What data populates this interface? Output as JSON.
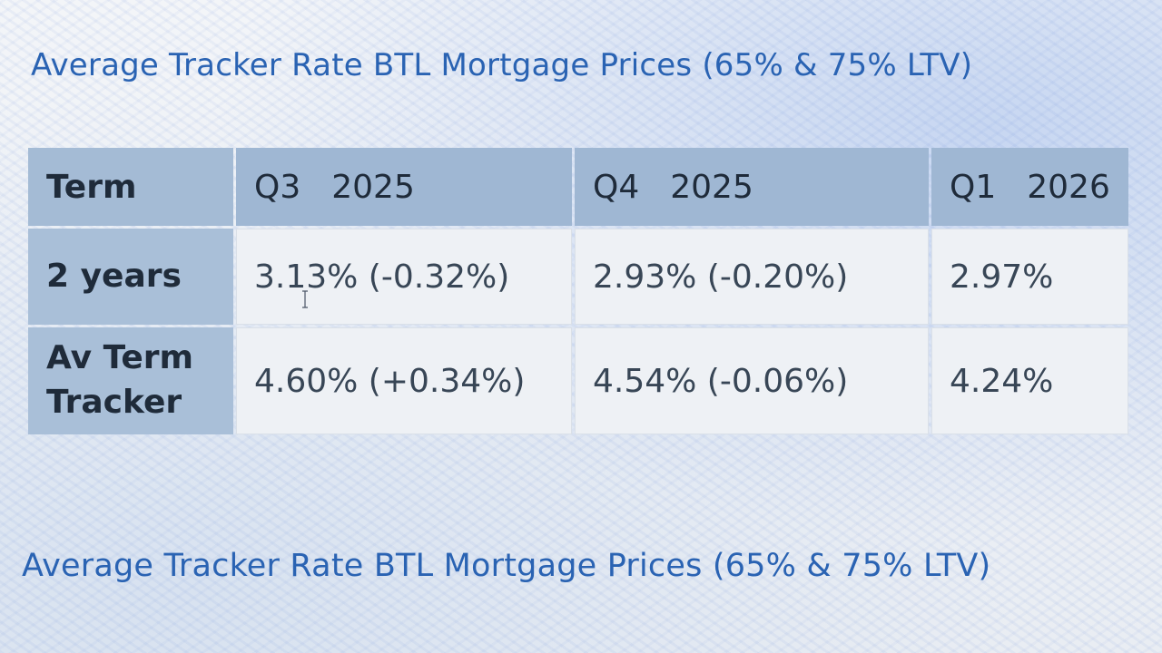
{
  "titles": {
    "top": "Average Tracker Rate BTL Mortgage Prices (65% & 75% LTV)",
    "bottom": "Average Tracker Rate BTL Mortgage Prices (65% & 75% LTV)"
  },
  "table": {
    "headers": {
      "term": "Term",
      "q3_label": "Q3",
      "q3_year": "2025",
      "q4_label": "Q4",
      "q4_year": "2025",
      "q1_label": "Q1",
      "q1_year": "2026"
    },
    "rows": [
      {
        "term": "2 years",
        "q3": "3.13% (-0.32%)",
        "q4": "2.93% (-0.20%)",
        "q1": "2.97%"
      },
      {
        "term": "Av Term Tracker",
        "q3": "4.60% (+0.34%)",
        "q4": "4.54% (-0.06%)",
        "q1": "4.24%"
      }
    ]
  },
  "cursor": {
    "icon": "text-cursor-icon"
  }
}
